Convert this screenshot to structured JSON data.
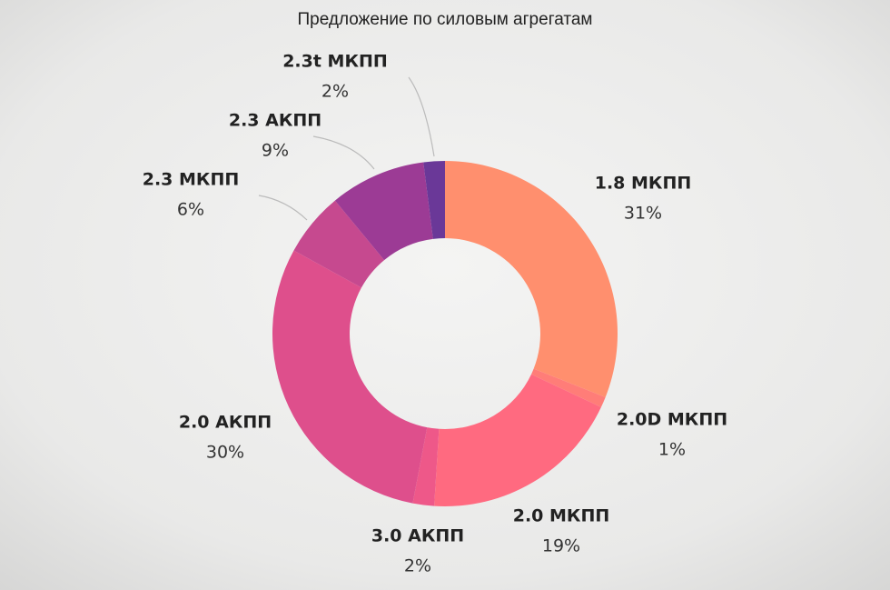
{
  "chart_data": {
    "type": "pie",
    "title": "Предложение по силовым агрегатам",
    "categories": [
      "1.8 МКПП",
      "2.0D МКПП",
      "2.0 МКПП",
      "3.0 АКПП",
      "2.0 АКПП",
      "2.3 МКПП",
      "2.3 АКПП",
      "2.3t МКПП"
    ],
    "values": [
      31,
      1,
      19,
      2,
      30,
      6,
      9,
      2
    ],
    "value_labels": [
      "31%",
      "1%",
      "19%",
      "2%",
      "30%",
      "6%",
      "9%",
      "2%"
    ],
    "colors": [
      "#ff8f6e",
      "#ff7d78",
      "#ff6a80",
      "#ee5889",
      "#de4f8c",
      "#c6498f",
      "#9c3b95",
      "#6a3898"
    ]
  }
}
